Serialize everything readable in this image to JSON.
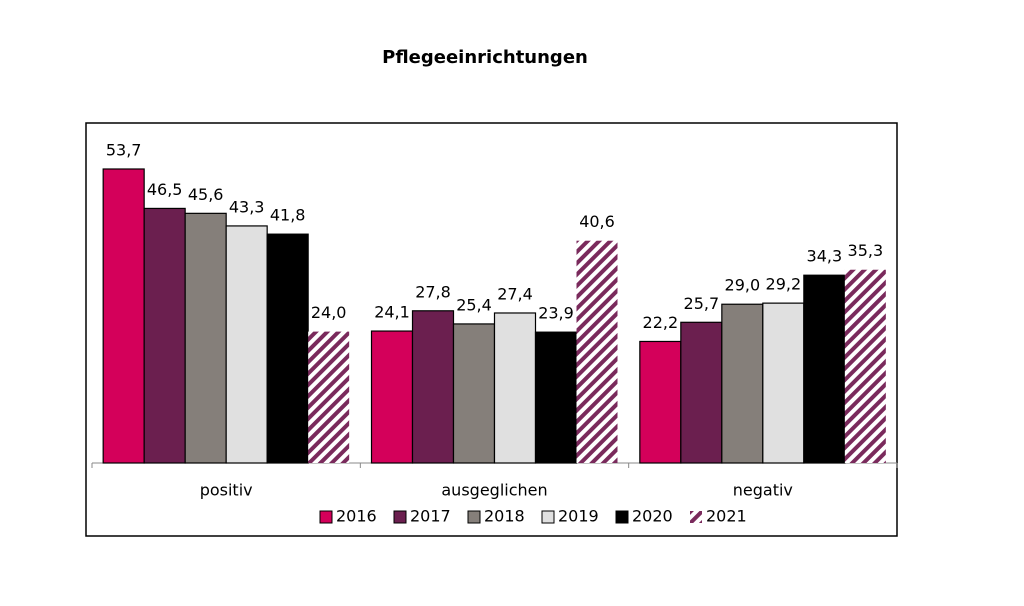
{
  "chart_data": {
    "type": "bar",
    "title": "Pflegeeinrichtungen",
    "categories": [
      "positiv",
      "ausgeglichen",
      "negativ"
    ],
    "series": [
      {
        "name": "2016",
        "color": "#d4005a",
        "values": [
          53.7,
          24.1,
          22.2
        ],
        "value_labels": [
          "53,7",
          "24,1",
          "22,2"
        ]
      },
      {
        "name": "2017",
        "color": "#6b1f4f",
        "values": [
          46.5,
          27.8,
          25.7
        ],
        "value_labels": [
          "46,5",
          "27,8",
          "25,7"
        ]
      },
      {
        "name": "2018",
        "color": "#857f7a",
        "values": [
          45.6,
          25.4,
          29.0
        ],
        "value_labels": [
          "45,6",
          "25,4",
          "29,0"
        ]
      },
      {
        "name": "2019",
        "color": "#e0e0e0",
        "values": [
          43.3,
          27.4,
          29.2
        ],
        "value_labels": [
          "43,3",
          "27,4",
          "29,2"
        ]
      },
      {
        "name": "2020",
        "color": "#000000",
        "values": [
          41.8,
          23.9,
          34.3
        ],
        "value_labels": [
          "41,8",
          "23,9",
          "34,3"
        ]
      },
      {
        "name": "2021",
        "color": "#7a2a5c",
        "hatch": true,
        "values": [
          24.0,
          40.6,
          35.3
        ],
        "value_labels": [
          "24,0",
          "40,6",
          "35,3"
        ]
      }
    ],
    "legend": "bottom"
  }
}
